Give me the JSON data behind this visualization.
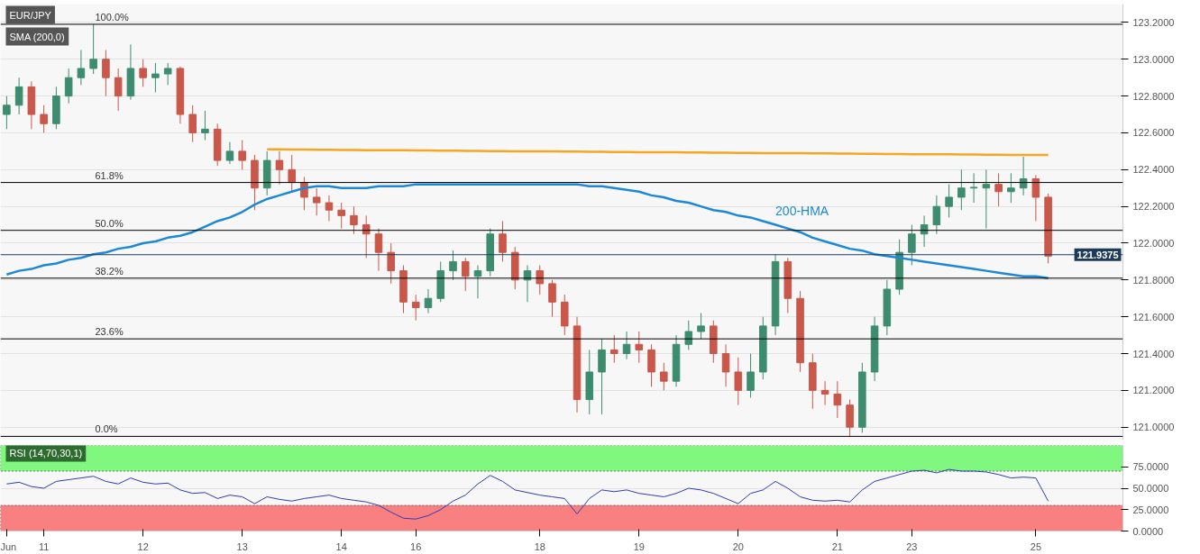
{
  "chart_data": [
    {
      "type": "candlestick",
      "title": "EUR/JPY",
      "categories": [
        null,
        null,
        null,
        null,
        null,
        null,
        null,
        null,
        null,
        null,
        null,
        null,
        null,
        null,
        null,
        null,
        null,
        null,
        null,
        null,
        null,
        null,
        null,
        null,
        null,
        null,
        null,
        null,
        null,
        null,
        null,
        null,
        null,
        null,
        null,
        null,
        null,
        null,
        null,
        null,
        null,
        null,
        null,
        null,
        null,
        null,
        null,
        null,
        null,
        null,
        null,
        null,
        null,
        null,
        null,
        null,
        null,
        null,
        null,
        null,
        null,
        null,
        null,
        null,
        null,
        null,
        null,
        null,
        null,
        null,
        null,
        null,
        null,
        null,
        null,
        null,
        null,
        null,
        null,
        null,
        null,
        null,
        null,
        null,
        null
      ],
      "ohlc": [
        [
          122.7,
          122.8,
          122.62,
          122.75
        ],
        [
          122.75,
          122.9,
          122.7,
          122.85
        ],
        [
          122.85,
          122.88,
          122.62,
          122.7
        ],
        [
          122.7,
          122.75,
          122.6,
          122.65
        ],
        [
          122.65,
          122.85,
          122.62,
          122.8
        ],
        [
          122.8,
          122.95,
          122.76,
          122.9
        ],
        [
          122.9,
          123.05,
          122.86,
          122.95
        ],
        [
          122.95,
          123.19,
          122.92,
          123.0
        ],
        [
          123.0,
          123.05,
          122.8,
          122.9
        ],
        [
          122.9,
          122.95,
          122.72,
          122.8
        ],
        [
          122.8,
          123.08,
          122.78,
          122.95
        ],
        [
          122.95,
          123.0,
          122.85,
          122.9
        ],
        [
          122.9,
          122.98,
          122.82,
          122.92
        ],
        [
          122.92,
          122.98,
          122.86,
          122.95
        ],
        [
          122.95,
          122.96,
          122.65,
          122.7
        ],
        [
          122.7,
          122.75,
          122.55,
          122.6
        ],
        [
          122.6,
          122.72,
          122.56,
          122.62
        ],
        [
          122.62,
          122.65,
          122.42,
          122.45
        ],
        [
          122.45,
          122.55,
          122.43,
          122.5
        ],
        [
          122.5,
          122.56,
          122.4,
          122.45
        ],
        [
          122.45,
          122.48,
          122.18,
          122.3
        ],
        [
          122.3,
          122.5,
          122.26,
          122.45
        ],
        [
          122.45,
          122.5,
          122.32,
          122.4
        ],
        [
          122.4,
          122.48,
          122.28,
          122.33
        ],
        [
          122.33,
          122.36,
          122.18,
          122.25
        ],
        [
          122.25,
          122.3,
          122.15,
          122.22
        ],
        [
          122.22,
          122.26,
          122.12,
          122.18
        ],
        [
          122.18,
          122.22,
          122.08,
          122.15
        ],
        [
          122.15,
          122.2,
          122.05,
          122.1
        ],
        [
          122.1,
          122.15,
          121.92,
          122.05
        ],
        [
          122.05,
          122.08,
          121.85,
          121.95
        ],
        [
          121.95,
          122.0,
          121.78,
          121.85
        ],
        [
          121.85,
          121.88,
          121.62,
          121.68
        ],
        [
          121.68,
          121.72,
          121.58,
          121.65
        ],
        [
          121.65,
          121.75,
          121.62,
          121.7
        ],
        [
          121.7,
          121.9,
          121.68,
          121.85
        ],
        [
          121.85,
          121.96,
          121.8,
          121.9
        ],
        [
          121.9,
          121.92,
          121.74,
          121.82
        ],
        [
          121.82,
          121.88,
          121.7,
          121.85
        ],
        [
          121.85,
          122.08,
          121.82,
          122.05
        ],
        [
          122.05,
          122.12,
          121.9,
          121.95
        ],
        [
          121.95,
          121.98,
          121.75,
          121.8
        ],
        [
          121.8,
          121.88,
          121.68,
          121.85
        ],
        [
          121.85,
          121.88,
          121.72,
          121.78
        ],
        [
          121.78,
          121.8,
          121.6,
          121.68
        ],
        [
          121.68,
          121.72,
          121.5,
          121.55
        ],
        [
          121.55,
          121.6,
          121.08,
          121.15
        ],
        [
          121.15,
          121.42,
          121.07,
          121.3
        ],
        [
          121.3,
          121.48,
          121.07,
          121.42
        ],
        [
          121.42,
          121.5,
          121.35,
          121.4
        ],
        [
          121.4,
          121.52,
          121.37,
          121.45
        ],
        [
          121.45,
          121.52,
          121.35,
          121.42
        ],
        [
          121.42,
          121.45,
          121.22,
          121.3
        ],
        [
          121.3,
          121.35,
          121.2,
          121.25
        ],
        [
          121.25,
          121.5,
          121.22,
          121.45
        ],
        [
          121.45,
          121.58,
          121.42,
          121.52
        ],
        [
          121.52,
          121.62,
          121.48,
          121.55
        ],
        [
          121.55,
          121.58,
          121.35,
          121.4
        ],
        [
          121.4,
          121.45,
          121.22,
          121.3
        ],
        [
          121.3,
          121.38,
          121.12,
          121.2
        ],
        [
          121.2,
          121.4,
          121.16,
          121.3
        ],
        [
          121.3,
          121.6,
          121.26,
          121.55
        ],
        [
          121.55,
          121.94,
          121.5,
          121.9
        ],
        [
          121.9,
          121.92,
          121.62,
          121.7
        ],
        [
          121.7,
          121.74,
          121.3,
          121.35
        ],
        [
          121.35,
          121.4,
          121.1,
          121.2
        ],
        [
          121.2,
          121.25,
          121.12,
          121.18
        ],
        [
          121.18,
          121.25,
          121.05,
          121.12
        ],
        [
          121.12,
          121.15,
          120.95,
          121.0
        ],
        [
          121.0,
          121.35,
          120.97,
          121.3
        ],
        [
          121.3,
          121.6,
          121.25,
          121.55
        ],
        [
          121.55,
          121.8,
          121.5,
          121.75
        ],
        [
          121.75,
          122.02,
          121.72,
          121.95
        ],
        [
          121.95,
          122.1,
          121.88,
          122.05
        ],
        [
          122.05,
          122.15,
          121.98,
          122.1
        ],
        [
          122.1,
          122.26,
          122.05,
          122.2
        ],
        [
          122.2,
          122.32,
          122.14,
          122.25
        ],
        [
          122.25,
          122.4,
          122.18,
          122.3
        ],
        [
          122.3,
          122.38,
          122.22,
          122.3
        ],
        [
          122.3,
          122.4,
          122.08,
          122.32
        ],
        [
          122.32,
          122.38,
          122.2,
          122.28
        ],
        [
          122.28,
          122.38,
          122.22,
          122.3
        ],
        [
          122.3,
          122.47,
          122.26,
          122.35
        ],
        [
          122.35,
          122.37,
          122.12,
          122.25
        ],
        [
          122.25,
          122.27,
          121.89,
          121.93
        ]
      ],
      "colors": [
        "#3e8c6f",
        "#3e8c6f",
        "#c9574a",
        "#c9574a",
        "#3e8c6f",
        "#3e8c6f",
        "#3e8c6f",
        "#3e8c6f",
        "#c9574a",
        "#c9574a",
        "#3e8c6f",
        "#c9574a",
        "#3e8c6f",
        "#3e8c6f",
        "#c9574a",
        "#c9574a",
        "#3e8c6f",
        "#c9574a",
        "#3e8c6f",
        "#c9574a",
        "#c9574a",
        "#3e8c6f",
        "#c9574a",
        "#c9574a",
        "#c9574a",
        "#c9574a",
        "#c9574a",
        "#c9574a",
        "#c9574a",
        "#c9574a",
        "#c9574a",
        "#c9574a",
        "#c9574a",
        "#c9574a",
        "#3e8c6f",
        "#3e8c6f",
        "#3e8c6f",
        "#c9574a",
        "#3e8c6f",
        "#3e8c6f",
        "#c9574a",
        "#c9574a",
        "#3e8c6f",
        "#c9574a",
        "#c9574a",
        "#c9574a",
        "#c9574a",
        "#3e8c6f",
        "#3e8c6f",
        "#c9574a",
        "#3e8c6f",
        "#c9574a",
        "#c9574a",
        "#c9574a",
        "#3e8c6f",
        "#3e8c6f",
        "#3e8c6f",
        "#c9574a",
        "#c9574a",
        "#c9574a",
        "#3e8c6f",
        "#3e8c6f",
        "#3e8c6f",
        "#c9574a",
        "#c9574a",
        "#c9574a",
        "#c9574a",
        "#c9574a",
        "#c9574a",
        "#3e8c6f",
        "#3e8c6f",
        "#3e8c6f",
        "#3e8c6f",
        "#3e8c6f",
        "#3e8c6f",
        "#3e8c6f",
        "#3e8c6f",
        "#3e8c6f",
        "#3e8c6f",
        "#3e8c6f",
        "#c9574a",
        "#3e8c6f",
        "#3e8c6f",
        "#c9574a",
        "#c9574a"
      ],
      "series": [
        {
          "type": "line",
          "name": "200-HMA",
          "color": "#1e88d8",
          "values": [
            121.83,
            121.85,
            121.86,
            121.88,
            121.89,
            121.91,
            121.92,
            121.94,
            121.95,
            121.97,
            121.98,
            122.0,
            122.01,
            122.03,
            122.04,
            122.06,
            122.09,
            122.12,
            122.14,
            122.17,
            122.21,
            122.24,
            122.26,
            122.28,
            122.3,
            122.31,
            122.31,
            122.3,
            122.3,
            122.3,
            122.31,
            122.31,
            122.31,
            122.32,
            122.32,
            122.32,
            122.32,
            122.32,
            122.32,
            122.32,
            122.32,
            122.32,
            122.32,
            122.32,
            122.32,
            122.32,
            122.32,
            122.31,
            122.31,
            122.3,
            122.29,
            122.28,
            122.26,
            122.25,
            122.23,
            122.22,
            122.2,
            122.18,
            122.17,
            122.15,
            122.14,
            122.12,
            122.1,
            122.08,
            122.06,
            122.03,
            122.01,
            121.99,
            121.97,
            121.96,
            121.94,
            121.93,
            121.92,
            121.91,
            121.9,
            121.89,
            121.88,
            121.87,
            121.86,
            121.85,
            121.84,
            121.83,
            121.82,
            121.82,
            121.81
          ]
        },
        {
          "type": "line",
          "color": "#f5a623",
          "values": [
            null,
            null,
            null,
            null,
            null,
            null,
            null,
            null,
            null,
            null,
            null,
            null,
            null,
            null,
            null,
            null,
            null,
            null,
            null,
            null,
            null,
            122.51,
            122.51,
            122.509,
            122.509,
            122.508,
            122.508,
            122.507,
            122.507,
            122.506,
            122.506,
            122.505,
            122.505,
            122.504,
            122.504,
            122.503,
            122.503,
            122.502,
            122.502,
            122.501,
            122.501,
            122.5,
            122.5,
            122.499,
            122.499,
            122.498,
            122.498,
            122.497,
            122.497,
            122.496,
            122.496,
            122.495,
            122.495,
            122.494,
            122.494,
            122.493,
            122.493,
            122.492,
            122.492,
            122.491,
            122.491,
            122.49,
            122.49,
            122.489,
            122.489,
            122.488,
            122.488,
            122.487,
            122.487,
            122.486,
            122.486,
            122.485,
            122.485,
            122.484,
            122.484,
            122.483,
            122.483,
            122.482,
            122.482,
            122.481,
            122.481,
            122.48,
            122.48,
            122.48,
            122.48
          ]
        }
      ],
      "ref_lines": [
        {
          "axis": "y",
          "value": 123.19,
          "color": "#000000"
        },
        {
          "axis": "y",
          "value": 122.33,
          "color": "#000000"
        },
        {
          "axis": "y",
          "value": 122.07,
          "color": "#000000"
        },
        {
          "axis": "y",
          "value": 121.81,
          "color": "#000000"
        },
        {
          "axis": "y",
          "value": 121.48,
          "color": "#000000"
        },
        {
          "axis": "y",
          "value": 120.95,
          "color": "#000000"
        },
        {
          "axis": "y",
          "value": 121.9375,
          "color": "#1f3b5a",
          "label": "121.9375"
        }
      ],
      "annotations": [
        "SMA (200,0)",
        {
          "text": "100.0%",
          "y": 123.19
        },
        {
          "text": "61.8%",
          "y": 122.33
        },
        {
          "text": "50.0%",
          "y": 122.07
        },
        {
          "text": "38.2%",
          "y": 121.81
        },
        {
          "text": "23.6%",
          "y": 121.48
        },
        {
          "text": "0.0%",
          "y": 120.95
        }
      ],
      "ylim": [
        120.93,
        123.3
      ],
      "yticks": [
        {
          "value": 121.0,
          "label": "121.0000"
        },
        {
          "value": 121.2,
          "label": "121.2000"
        },
        {
          "value": 121.4,
          "label": "121.4000"
        },
        {
          "value": 121.6,
          "label": "121.6000"
        },
        {
          "value": 121.8,
          "label": "121.8000"
        },
        {
          "value": 122.0,
          "label": "122.0000"
        },
        {
          "value": 122.2,
          "label": "122.2000"
        },
        {
          "value": 122.4,
          "label": "122.4000"
        },
        {
          "value": 122.6,
          "label": "122.6000"
        },
        {
          "value": 122.8,
          "label": "122.8000"
        },
        {
          "value": 123.0,
          "label": "123.0000"
        },
        {
          "value": 123.2,
          "label": "123.2000"
        }
      ],
      "grid": "y",
      "tick_labels": "y"
    },
    {
      "type": "line",
      "title": "RSI (14,70,30,1)",
      "categories": [
        "Jun",
        null,
        null,
        "11",
        null,
        null,
        null,
        null,
        null,
        null,
        null,
        "12",
        null,
        null,
        null,
        null,
        null,
        null,
        null,
        "13",
        null,
        null,
        null,
        null,
        null,
        null,
        null,
        "14",
        null,
        null,
        null,
        null,
        null,
        "16",
        null,
        null,
        null,
        null,
        null,
        null,
        null,
        null,
        null,
        "18",
        null,
        null,
        null,
        null,
        null,
        null,
        null,
        "19",
        null,
        null,
        null,
        null,
        null,
        null,
        null,
        "20",
        null,
        null,
        null,
        null,
        null,
        null,
        null,
        "21",
        null,
        null,
        null,
        null,
        null,
        "23",
        null,
        null,
        null,
        null,
        null,
        null,
        null,
        null,
        null,
        "25",
        null
      ],
      "series": [
        {
          "color": "#2f3db0",
          "values": [
            55,
            57,
            52,
            50,
            58,
            60,
            62,
            64,
            58,
            55,
            62,
            57,
            55,
            56,
            48,
            44,
            45,
            38,
            42,
            40,
            32,
            40,
            37,
            35,
            38,
            40,
            42,
            38,
            36,
            34,
            30,
            22,
            15,
            14,
            18,
            25,
            35,
            42,
            55,
            65,
            58,
            48,
            45,
            42,
            40,
            38,
            20,
            38,
            48,
            46,
            48,
            44,
            42,
            40,
            44,
            50,
            48,
            44,
            38,
            32,
            44,
            48,
            58,
            50,
            40,
            36,
            35,
            36,
            34,
            48,
            58,
            62,
            66,
            70,
            71,
            68,
            72,
            70,
            70,
            69,
            66,
            62,
            63,
            62,
            35
          ]
        }
      ],
      "bands": [
        {
          "axis": "y",
          "from": 70,
          "to": 100,
          "color": "#80f880"
        },
        {
          "axis": "y",
          "from": 0,
          "to": 30,
          "color": "#f88080"
        }
      ],
      "ylim": [
        0,
        100
      ],
      "yticks": [
        {
          "value": 0,
          "label": "0.0000"
        },
        {
          "value": 25,
          "label": "25.0000"
        },
        {
          "value": 50,
          "label": "50.0000"
        },
        {
          "value": 75,
          "label": "75.0000"
        }
      ],
      "grid": "y"
    }
  ]
}
